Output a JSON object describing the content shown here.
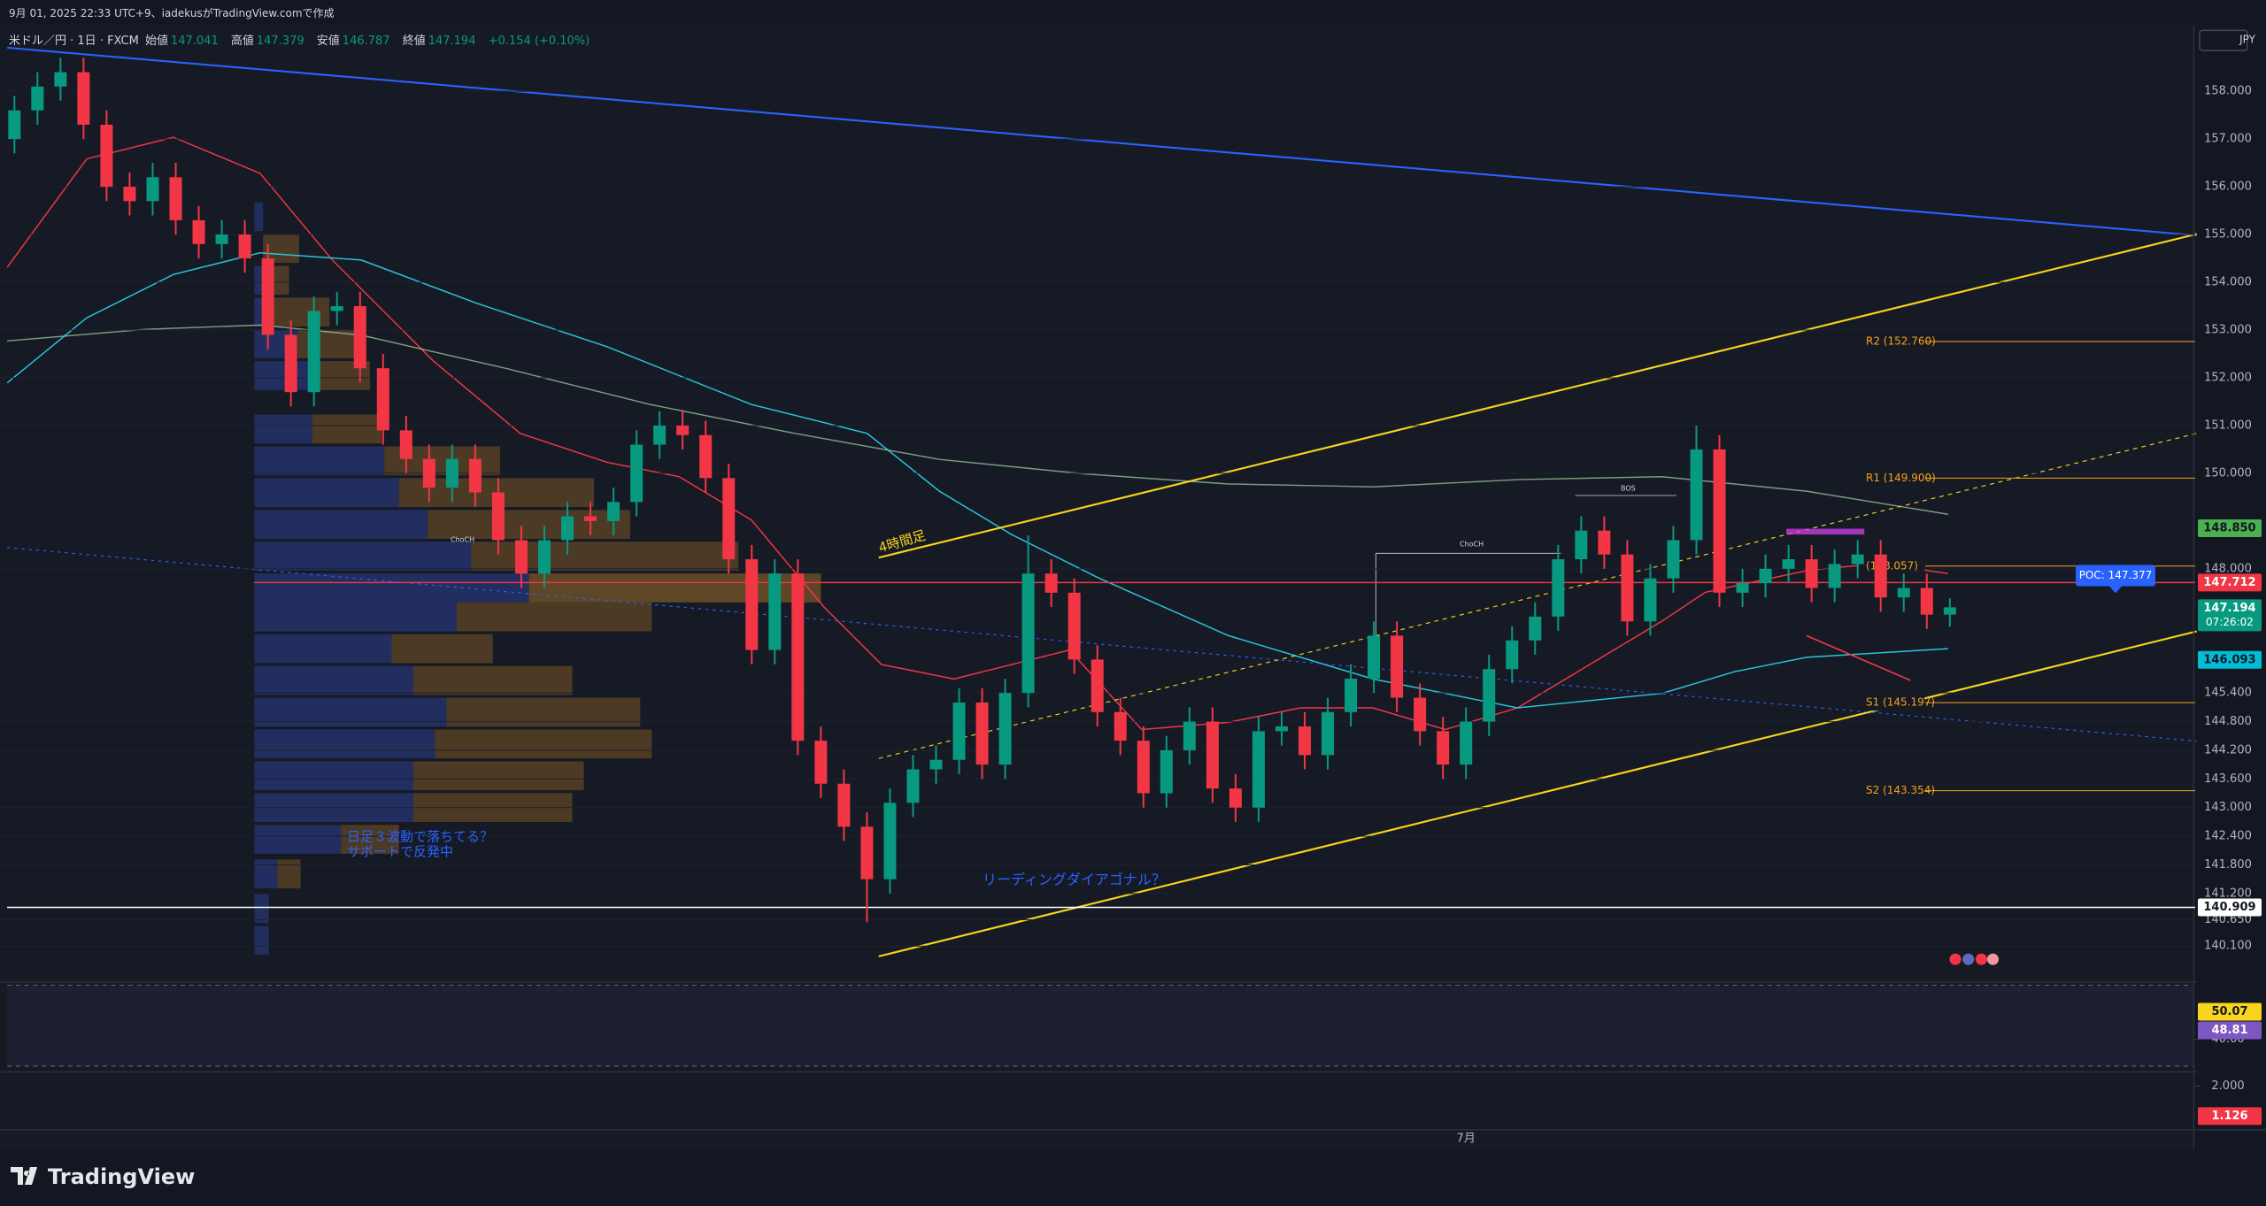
{
  "header": {
    "caption": "9月 01, 2025 22:33 UTC+9、iadekusがTradingView.comで作成",
    "logo": "TradingView"
  },
  "chart_data": {
    "type": "candlestick",
    "symbol": "米ドル／円 · 1日 · FXCM",
    "ohlc_labels": [
      "始値",
      "高値",
      "安値",
      "終値"
    ],
    "change": "+0.154 (+0.10%)",
    "currency": "JPY",
    "up_color": "#089981",
    "down_color": "#f23645",
    "categories": [
      null,
      null,
      null,
      null,
      null,
      null,
      null,
      null,
      null,
      null,
      null,
      null,
      null,
      null,
      null,
      null,
      null,
      null,
      null,
      null,
      null,
      null,
      null,
      null,
      null,
      null,
      null,
      null,
      null,
      null,
      null,
      null,
      null,
      null,
      null,
      null,
      null,
      null,
      null,
      null,
      null,
      null,
      null,
      null,
      null,
      null,
      null,
      null,
      null,
      null,
      null,
      null,
      null,
      null,
      null,
      null,
      null,
      null,
      null,
      null,
      null,
      null,
      null,
      "7月",
      null,
      null,
      null,
      null,
      null,
      null,
      null,
      null,
      null,
      null,
      null,
      null,
      null,
      null,
      null,
      null,
      null,
      null,
      null,
      null,
      null
    ],
    "open": [
      157.0,
      157.6,
      158.1,
      158.4,
      157.3,
      156.0,
      155.7,
      156.2,
      155.3,
      154.8,
      155.0,
      154.5,
      152.9,
      151.7,
      153.4,
      153.5,
      152.2,
      150.9,
      150.3,
      149.7,
      150.3,
      149.6,
      148.6,
      147.9,
      148.6,
      149.1,
      149.0,
      149.4,
      150.6,
      151.0,
      150.8,
      149.9,
      148.2,
      146.3,
      147.9,
      144.4,
      143.5,
      142.6,
      141.5,
      143.1,
      143.8,
      144.0,
      145.2,
      143.9,
      145.4,
      147.9,
      147.5,
      146.1,
      145.0,
      144.4,
      143.3,
      144.2,
      144.8,
      143.4,
      143.0,
      144.6,
      144.7,
      144.1,
      145.0,
      145.7,
      146.6,
      145.3,
      144.6,
      143.9,
      144.8,
      145.9,
      146.5,
      147.0,
      148.2,
      148.8,
      148.3,
      146.9,
      147.8,
      148.6,
      150.5,
      147.5,
      147.7,
      148.0,
      148.2,
      147.6,
      148.1,
      148.3,
      147.4,
      147.6,
      147.041
    ],
    "high": [
      157.9,
      158.4,
      158.7,
      158.7,
      157.6,
      156.3,
      156.5,
      156.5,
      155.6,
      155.3,
      155.3,
      154.8,
      153.2,
      153.7,
      153.8,
      153.8,
      152.5,
      151.2,
      150.6,
      150.6,
      150.6,
      149.9,
      148.9,
      148.9,
      149.4,
      149.4,
      149.7,
      150.9,
      151.3,
      151.3,
      151.1,
      150.2,
      148.5,
      148.2,
      148.2,
      144.7,
      143.8,
      142.9,
      143.4,
      144.1,
      144.3,
      145.5,
      145.5,
      145.7,
      148.7,
      148.2,
      147.8,
      146.4,
      145.3,
      144.7,
      144.5,
      145.1,
      145.1,
      143.7,
      144.9,
      145.0,
      145.0,
      145.3,
      146.0,
      146.9,
      146.9,
      145.6,
      144.9,
      145.1,
      146.2,
      146.8,
      147.3,
      148.5,
      149.1,
      149.1,
      148.6,
      148.1,
      148.9,
      151.0,
      150.8,
      148.0,
      148.3,
      148.5,
      148.5,
      148.4,
      148.6,
      148.6,
      147.9,
      147.9,
      147.379
    ],
    "low": [
      156.7,
      157.3,
      157.8,
      157.0,
      155.7,
      155.4,
      155.4,
      155.0,
      154.5,
      154.5,
      154.2,
      152.6,
      151.4,
      151.4,
      153.1,
      151.9,
      150.6,
      150.0,
      149.4,
      149.4,
      149.3,
      148.3,
      147.6,
      147.6,
      148.3,
      148.7,
      148.7,
      149.1,
      150.3,
      150.5,
      149.6,
      147.9,
      146.0,
      146.0,
      144.1,
      143.2,
      142.3,
      140.6,
      141.2,
      142.8,
      143.5,
      143.7,
      143.6,
      143.6,
      145.1,
      147.2,
      145.8,
      144.7,
      144.1,
      143.0,
      143.0,
      143.9,
      143.1,
      142.7,
      142.7,
      144.3,
      143.8,
      143.8,
      144.7,
      145.4,
      145.0,
      144.3,
      143.6,
      143.6,
      144.5,
      145.6,
      146.2,
      146.7,
      147.9,
      148.0,
      146.6,
      146.6,
      147.5,
      148.3,
      147.2,
      147.2,
      147.4,
      147.7,
      147.3,
      147.3,
      147.8,
      147.1,
      147.1,
      146.741,
      146.787
    ],
    "close": [
      157.6,
      158.1,
      158.4,
      157.3,
      156.0,
      155.7,
      156.2,
      155.3,
      154.8,
      155.0,
      154.5,
      152.9,
      151.7,
      153.4,
      153.5,
      152.2,
      150.9,
      150.3,
      149.7,
      150.3,
      149.6,
      148.6,
      147.9,
      148.6,
      149.1,
      149.0,
      149.4,
      150.6,
      151.0,
      150.8,
      149.9,
      148.2,
      146.3,
      147.9,
      144.4,
      143.5,
      142.6,
      141.5,
      143.1,
      143.8,
      144.0,
      145.2,
      143.9,
      145.4,
      147.9,
      147.5,
      146.1,
      145.0,
      144.4,
      143.3,
      144.2,
      144.8,
      143.4,
      143.0,
      144.6,
      144.7,
      144.1,
      145.0,
      145.7,
      146.6,
      145.3,
      144.6,
      143.9,
      144.8,
      145.9,
      146.5,
      147.0,
      148.2,
      148.8,
      148.3,
      146.9,
      147.8,
      148.6,
      150.5,
      147.5,
      147.7,
      148.0,
      148.2,
      147.6,
      148.1,
      148.3,
      147.4,
      147.6,
      147.041,
      147.194
    ],
    "ylim": [
      139.4,
      159.3
    ],
    "yticks": [
      {
        "value": 158,
        "label": "158.000"
      },
      {
        "value": 157,
        "label": "157.000"
      },
      {
        "value": 156,
        "label": "156.000"
      },
      {
        "value": 155,
        "label": "155.000"
      },
      {
        "value": 154,
        "label": "154.000"
      },
      {
        "value": 153,
        "label": "153.000"
      },
      {
        "value": 152,
        "label": "152.000"
      },
      {
        "value": 151,
        "label": "151.000"
      },
      {
        "value": 150,
        "label": "150.000"
      },
      {
        "value": 148,
        "label": "148.000"
      },
      {
        "value": 145.4,
        "label": "145.400"
      },
      {
        "value": 144.8,
        "label": "144.800"
      },
      {
        "value": 144.2,
        "label": "144.200"
      },
      {
        "value": 143.6,
        "label": "143.600"
      },
      {
        "value": 143,
        "label": "143.000"
      },
      {
        "value": 142.4,
        "label": "142.400"
      },
      {
        "value": 141.8,
        "label": "141.800"
      },
      {
        "value": 141.2,
        "label": "141.200"
      },
      {
        "value": 140.65,
        "label": "140.650"
      },
      {
        "value": 140.1,
        "label": "140.100"
      }
    ],
    "grid": true,
    "levels": [
      {
        "label": "R2 (152.760)",
        "value": 152.76,
        "color": "#f7a21b"
      },
      {
        "label": "R1 (149.900)",
        "value": 149.9,
        "color": "#f7a21b"
      },
      {
        "label": "(148.057)",
        "value": 148.057,
        "color": "#f7a21b"
      },
      {
        "label": "S1 (145.197)",
        "value": 145.197,
        "color": "#f7a21b"
      },
      {
        "label": "S2 (143.354)",
        "value": 143.354,
        "color": "#f7a21b"
      }
    ],
    "price_tags": [
      {
        "label": "148.850",
        "value": 148.85,
        "color": "#4caf50",
        "text_color": "#131722"
      },
      {
        "label": "147.712",
        "value": 147.712,
        "color": "#f23645",
        "text_color": "#ffffff",
        "line": true
      },
      {
        "label": "147.194",
        "value": 147.194,
        "color": "#089981",
        "text_color": "#ffffff",
        "countdown": "07:26:02"
      },
      {
        "label": "146.093",
        "value": 146.093,
        "color": "#00bcd4",
        "text_color": "#131722"
      },
      {
        "label": "140.909",
        "value": 140.909,
        "color": "#ffffff",
        "text_color": "#131722",
        "line": true
      }
    ],
    "poc": {
      "label": "POC: 147.377",
      "value": 147.377,
      "color": "#2962ff"
    },
    "annotations": [
      "4時間足",
      "リーディングダイアゴナル？",
      "日足３波動で落ちてる？",
      "サポートで反発中",
      "ChoCH",
      "ChoCH",
      "BOS"
    ],
    "rsi": {
      "ylim": [
        30,
        60
      ],
      "ticks": [
        {
          "value": 40,
          "label": "40.00"
        }
      ],
      "tags": [
        {
          "label": "50.07",
          "value": 50.07,
          "color": "#f7d51d",
          "text_color": "#131722"
        },
        {
          "label": "48.81",
          "value": 48.81,
          "color": "#7e57c2",
          "text_color": "#ffffff"
        }
      ]
    },
    "lower": {
      "ylim": [
        0.8,
        2.3
      ],
      "ticks": [
        {
          "value": 2,
          "label": "2.000"
        }
      ],
      "tags": [
        {
          "label": "1.126",
          "value": 1.126,
          "color": "#f23645",
          "text_color": "#ffffff"
        }
      ]
    }
  }
}
